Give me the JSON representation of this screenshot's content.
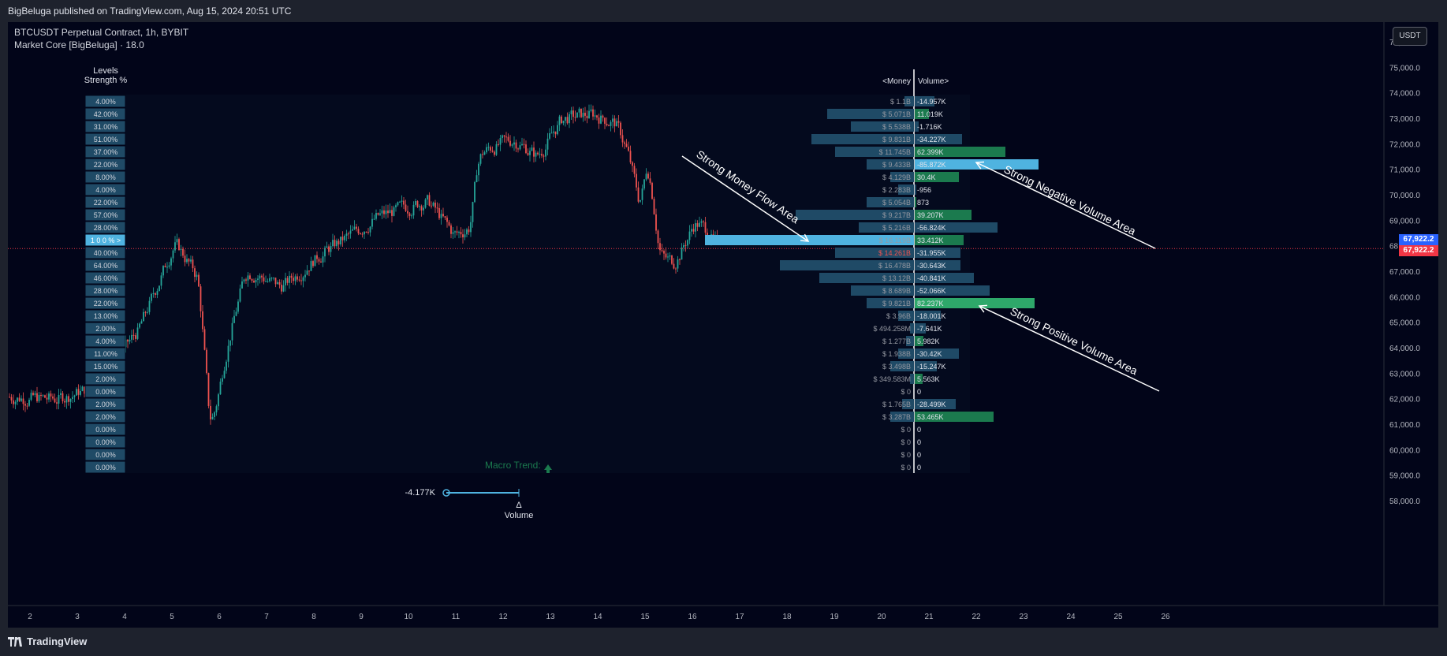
{
  "header": {
    "published": "BigBeluga published on TradingView.com, Aug 15, 2024 20:51 UTC"
  },
  "legend": {
    "symbol": "BTCUSDT Perpetual Contract, 1h, BYBIT",
    "indicator": "Market Core [BigBeluga] · 18.0"
  },
  "currency_button": "USDT",
  "levels": {
    "title_line1": "Levels",
    "title_line2": "Strength %",
    "values": [
      "4.00%",
      "42.00%",
      "31.00%",
      "51.00%",
      "37.00%",
      "22.00%",
      "8.00%",
      "4.00%",
      "22.00%",
      "57.00%",
      "28.00%",
      "100%",
      "40.00%",
      "64.00%",
      "46.00%",
      "28.00%",
      "22.00%",
      "13.00%",
      "2.00%",
      "4.00%",
      "11.00%",
      "15.00%",
      "2.00%",
      "0.00%",
      "2.00%",
      "2.00%",
      "0.00%",
      "0.00%",
      "0.00%",
      "0.00%"
    ]
  },
  "profile": {
    "header_money": "<Money",
    "header_volume": "Volume>",
    "money": [
      "$ 1.1B",
      "$ 5.071B",
      "$ 5.538B",
      "$ 9.831B",
      "$ 11.745B",
      "$ 9.433B",
      "$ 4.129B",
      "$ 2.283B",
      "$ 5.054B",
      "$ 9.217B",
      "$ 5.216B",
      "$ 16.119B",
      "$ 14.261B",
      "$ 16.478B",
      "$ 13.12B",
      "$ 8.689B",
      "$ 9.821B",
      "$ 3.96B",
      "$ 494.258M",
      "$ 1.277B",
      "$ 1.938B",
      "$ 3.498B",
      "$ 349.583M",
      "$ 0",
      "$ 1.765B",
      "$ 3.287B",
      "$ 0",
      "$ 0",
      "$ 0",
      "$ 0"
    ],
    "volume": [
      "-14.957K",
      "11.019K",
      "-1.716K",
      "-34.227K",
      "62.399K",
      "-85.872K",
      "30.4K",
      "-956",
      "873",
      "39.207K",
      "-56.824K",
      "33.412K",
      "-31.955K",
      "-30.643K",
      "-40.841K",
      "-52.066K",
      "82.237K",
      "-18.001K",
      "-7.641K",
      "5.982K",
      "-30.42K",
      "-15.247K",
      "5.563K",
      "0",
      "-28.499K",
      "53.465K",
      "0",
      "0",
      "0",
      "0"
    ]
  },
  "annotations": {
    "money_flow": "Strong Money Flow Area",
    "negative_volume": "Strong Negative Volume Area",
    "positive_volume": "Strong Positive Volume Area",
    "macro_trend": "Macro Trend:"
  },
  "delta": {
    "value": "-4.177K",
    "symbol": "Δ",
    "label": "Volume"
  },
  "y_axis": [
    "76,000.0",
    "75,000.0",
    "74,000.0",
    "73,000.0",
    "72,000.0",
    "71,000.0",
    "70,000.0",
    "69,000.0",
    "68,000.0",
    "67,000.0",
    "66,000.0",
    "65,000.0",
    "64,000.0",
    "63,000.0",
    "62,000.0",
    "61,000.0",
    "60,000.0",
    "59,000.0",
    "58,000.0"
  ],
  "price_tags": {
    "upper": "67,922.2",
    "lower": "67,922.2"
  },
  "x_axis": [
    "2",
    "3",
    "4",
    "5",
    "6",
    "7",
    "8",
    "9",
    "10",
    "11",
    "12",
    "13",
    "14",
    "15",
    "16",
    "17",
    "18",
    "19",
    "20",
    "21",
    "22",
    "23",
    "24",
    "25",
    "26"
  ],
  "branding": "TradingView",
  "colors": {
    "up": "#26a69a",
    "down": "#ef5350",
    "level_box": "#1f4a66",
    "highlight": "#4fb3e0",
    "green_bar": "#1b7a4e",
    "price_blue": "#2962ff",
    "price_red": "#f23645"
  }
}
